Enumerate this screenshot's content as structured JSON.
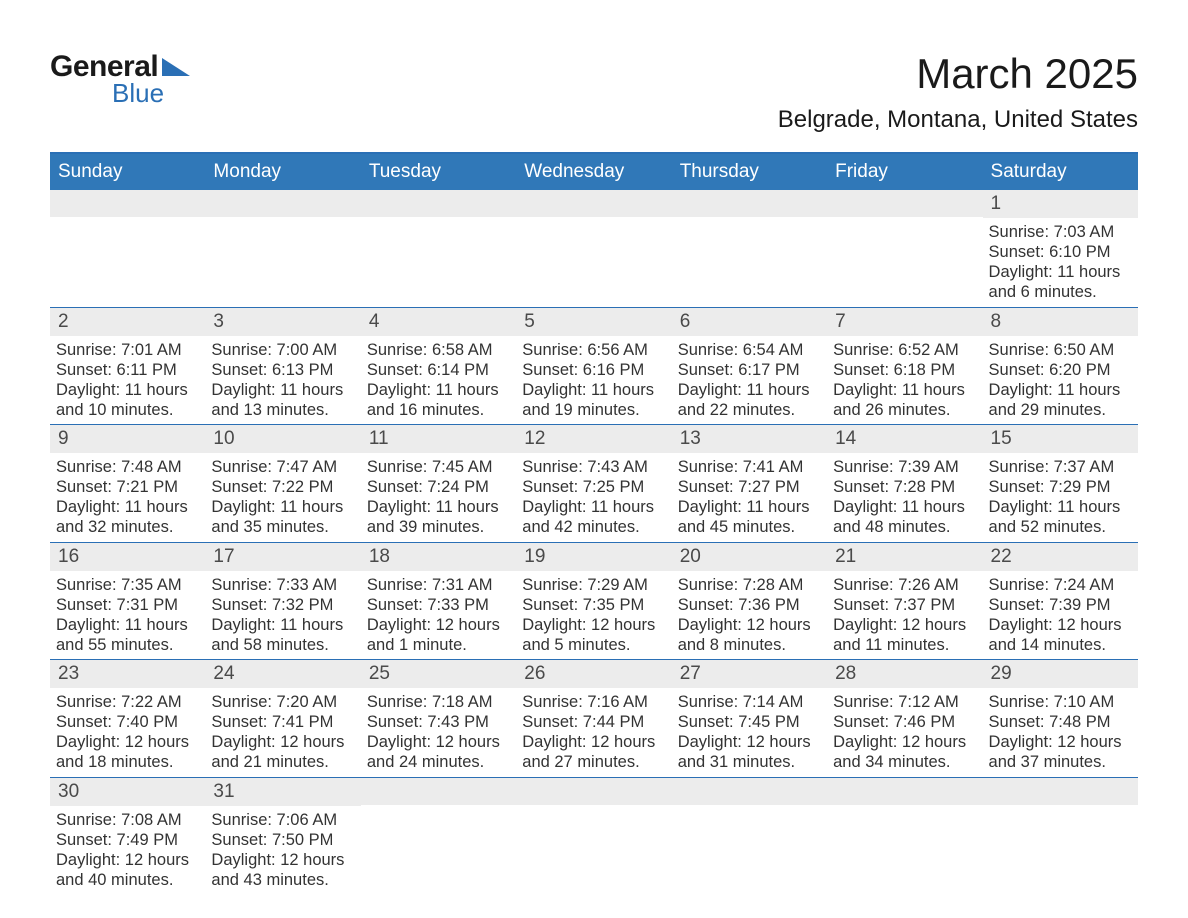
{
  "logo": {
    "text_general": "General",
    "text_blue": "Blue",
    "triangle_color": "#2a6fb5",
    "text_color_general": "#1a1a1a",
    "text_color_blue": "#2a6fb5"
  },
  "title": "March 2025",
  "location": "Belgrade, Montana, United States",
  "colors": {
    "header_bg": "#3078b8",
    "header_text": "#ffffff",
    "row_border": "#2a6fb5",
    "day_number_bg": "#ececec",
    "day_number_text": "#4a4a4a",
    "body_text": "#333333",
    "page_bg": "#ffffff"
  },
  "typography": {
    "title_fontsize": 42,
    "location_fontsize": 24,
    "header_fontsize": 19,
    "daynum_fontsize": 19,
    "body_fontsize": 16.5,
    "font_family": "Arial"
  },
  "layout": {
    "columns": 7,
    "rows": 6,
    "first_day_column": 6
  },
  "day_headers": [
    "Sunday",
    "Monday",
    "Tuesday",
    "Wednesday",
    "Thursday",
    "Friday",
    "Saturday"
  ],
  "weeks": [
    [
      null,
      null,
      null,
      null,
      null,
      null,
      {
        "d": "1",
        "sr": "Sunrise: 7:03 AM",
        "ss": "Sunset: 6:10 PM",
        "dl": "Daylight: 11 hours and 6 minutes."
      }
    ],
    [
      {
        "d": "2",
        "sr": "Sunrise: 7:01 AM",
        "ss": "Sunset: 6:11 PM",
        "dl": "Daylight: 11 hours and 10 minutes."
      },
      {
        "d": "3",
        "sr": "Sunrise: 7:00 AM",
        "ss": "Sunset: 6:13 PM",
        "dl": "Daylight: 11 hours and 13 minutes."
      },
      {
        "d": "4",
        "sr": "Sunrise: 6:58 AM",
        "ss": "Sunset: 6:14 PM",
        "dl": "Daylight: 11 hours and 16 minutes."
      },
      {
        "d": "5",
        "sr": "Sunrise: 6:56 AM",
        "ss": "Sunset: 6:16 PM",
        "dl": "Daylight: 11 hours and 19 minutes."
      },
      {
        "d": "6",
        "sr": "Sunrise: 6:54 AM",
        "ss": "Sunset: 6:17 PM",
        "dl": "Daylight: 11 hours and 22 minutes."
      },
      {
        "d": "7",
        "sr": "Sunrise: 6:52 AM",
        "ss": "Sunset: 6:18 PM",
        "dl": "Daylight: 11 hours and 26 minutes."
      },
      {
        "d": "8",
        "sr": "Sunrise: 6:50 AM",
        "ss": "Sunset: 6:20 PM",
        "dl": "Daylight: 11 hours and 29 minutes."
      }
    ],
    [
      {
        "d": "9",
        "sr": "Sunrise: 7:48 AM",
        "ss": "Sunset: 7:21 PM",
        "dl": "Daylight: 11 hours and 32 minutes."
      },
      {
        "d": "10",
        "sr": "Sunrise: 7:47 AM",
        "ss": "Sunset: 7:22 PM",
        "dl": "Daylight: 11 hours and 35 minutes."
      },
      {
        "d": "11",
        "sr": "Sunrise: 7:45 AM",
        "ss": "Sunset: 7:24 PM",
        "dl": "Daylight: 11 hours and 39 minutes."
      },
      {
        "d": "12",
        "sr": "Sunrise: 7:43 AM",
        "ss": "Sunset: 7:25 PM",
        "dl": "Daylight: 11 hours and 42 minutes."
      },
      {
        "d": "13",
        "sr": "Sunrise: 7:41 AM",
        "ss": "Sunset: 7:27 PM",
        "dl": "Daylight: 11 hours and 45 minutes."
      },
      {
        "d": "14",
        "sr": "Sunrise: 7:39 AM",
        "ss": "Sunset: 7:28 PM",
        "dl": "Daylight: 11 hours and 48 minutes."
      },
      {
        "d": "15",
        "sr": "Sunrise: 7:37 AM",
        "ss": "Sunset: 7:29 PM",
        "dl": "Daylight: 11 hours and 52 minutes."
      }
    ],
    [
      {
        "d": "16",
        "sr": "Sunrise: 7:35 AM",
        "ss": "Sunset: 7:31 PM",
        "dl": "Daylight: 11 hours and 55 minutes."
      },
      {
        "d": "17",
        "sr": "Sunrise: 7:33 AM",
        "ss": "Sunset: 7:32 PM",
        "dl": "Daylight: 11 hours and 58 minutes."
      },
      {
        "d": "18",
        "sr": "Sunrise: 7:31 AM",
        "ss": "Sunset: 7:33 PM",
        "dl": "Daylight: 12 hours and 1 minute."
      },
      {
        "d": "19",
        "sr": "Sunrise: 7:29 AM",
        "ss": "Sunset: 7:35 PM",
        "dl": "Daylight: 12 hours and 5 minutes."
      },
      {
        "d": "20",
        "sr": "Sunrise: 7:28 AM",
        "ss": "Sunset: 7:36 PM",
        "dl": "Daylight: 12 hours and 8 minutes."
      },
      {
        "d": "21",
        "sr": "Sunrise: 7:26 AM",
        "ss": "Sunset: 7:37 PM",
        "dl": "Daylight: 12 hours and 11 minutes."
      },
      {
        "d": "22",
        "sr": "Sunrise: 7:24 AM",
        "ss": "Sunset: 7:39 PM",
        "dl": "Daylight: 12 hours and 14 minutes."
      }
    ],
    [
      {
        "d": "23",
        "sr": "Sunrise: 7:22 AM",
        "ss": "Sunset: 7:40 PM",
        "dl": "Daylight: 12 hours and 18 minutes."
      },
      {
        "d": "24",
        "sr": "Sunrise: 7:20 AM",
        "ss": "Sunset: 7:41 PM",
        "dl": "Daylight: 12 hours and 21 minutes."
      },
      {
        "d": "25",
        "sr": "Sunrise: 7:18 AM",
        "ss": "Sunset: 7:43 PM",
        "dl": "Daylight: 12 hours and 24 minutes."
      },
      {
        "d": "26",
        "sr": "Sunrise: 7:16 AM",
        "ss": "Sunset: 7:44 PM",
        "dl": "Daylight: 12 hours and 27 minutes."
      },
      {
        "d": "27",
        "sr": "Sunrise: 7:14 AM",
        "ss": "Sunset: 7:45 PM",
        "dl": "Daylight: 12 hours and 31 minutes."
      },
      {
        "d": "28",
        "sr": "Sunrise: 7:12 AM",
        "ss": "Sunset: 7:46 PM",
        "dl": "Daylight: 12 hours and 34 minutes."
      },
      {
        "d": "29",
        "sr": "Sunrise: 7:10 AM",
        "ss": "Sunset: 7:48 PM",
        "dl": "Daylight: 12 hours and 37 minutes."
      }
    ],
    [
      {
        "d": "30",
        "sr": "Sunrise: 7:08 AM",
        "ss": "Sunset: 7:49 PM",
        "dl": "Daylight: 12 hours and 40 minutes."
      },
      {
        "d": "31",
        "sr": "Sunrise: 7:06 AM",
        "ss": "Sunset: 7:50 PM",
        "dl": "Daylight: 12 hours and 43 minutes."
      },
      null,
      null,
      null,
      null,
      null
    ]
  ]
}
